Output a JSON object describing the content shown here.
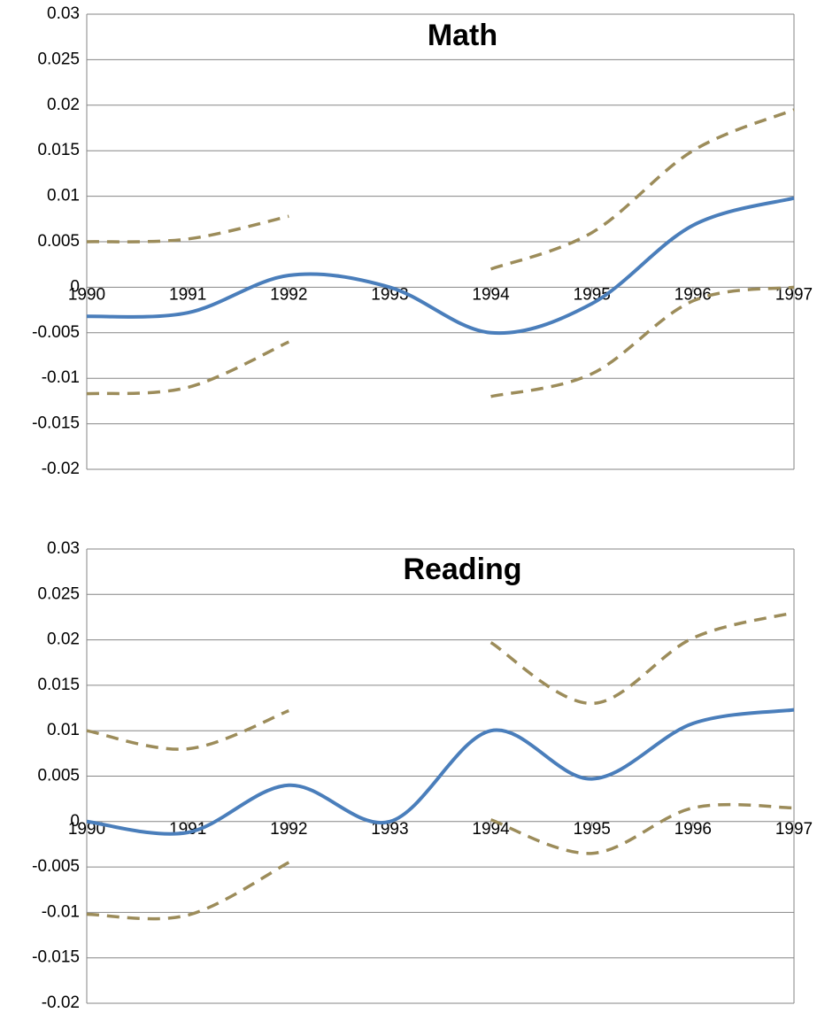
{
  "chart_data": [
    {
      "type": "line",
      "title": "Math",
      "x": [
        1990,
        1991,
        1992,
        1993,
        1994,
        1995,
        1996,
        1997
      ],
      "xlim": [
        1990,
        1997
      ],
      "ylim": [
        -0.02,
        0.03
      ],
      "yticks": [
        -0.02,
        -0.015,
        -0.01,
        -0.005,
        0,
        0.005,
        0.01,
        0.015,
        0.02,
        0.025,
        0.03
      ],
      "grid": true,
      "smooth": true,
      "series": [
        {
          "color": "#4a7ebb",
          "dashed": false,
          "values": [
            -0.0032,
            -0.0028,
            0.0013,
            0.0,
            -0.005,
            -0.0018,
            0.0068,
            0.0098
          ]
        },
        {
          "color": "#9c8c5a",
          "dashed": true,
          "values": [
            0.005,
            0.0053,
            0.0078,
            null,
            0.002,
            0.006,
            0.015,
            0.0195
          ]
        },
        {
          "color": "#9c8c5a",
          "dashed": true,
          "values": [
            -0.0117,
            -0.011,
            -0.006,
            null,
            -0.012,
            -0.0095,
            -0.0015,
            0.0
          ]
        }
      ]
    },
    {
      "type": "line",
      "title": "Reading",
      "x": [
        1990,
        1991,
        1992,
        1993,
        1994,
        1995,
        1996,
        1997
      ],
      "xlim": [
        1990,
        1997
      ],
      "ylim": [
        -0.02,
        0.03
      ],
      "yticks": [
        -0.02,
        -0.015,
        -0.01,
        -0.005,
        0,
        0.005,
        0.01,
        0.015,
        0.02,
        0.025,
        0.03
      ],
      "grid": true,
      "smooth": true,
      "series": [
        {
          "color": "#4a7ebb",
          "dashed": false,
          "values": [
            0.0,
            -0.0012,
            0.004,
            0.0,
            0.01,
            0.0047,
            0.0108,
            0.0123
          ]
        },
        {
          "color": "#9c8c5a",
          "dashed": true,
          "values": [
            0.01,
            0.008,
            0.0122,
            null,
            0.0197,
            0.013,
            0.0202,
            0.023
          ]
        },
        {
          "color": "#9c8c5a",
          "dashed": true,
          "values": [
            -0.0102,
            -0.0103,
            -0.0045,
            null,
            0.0002,
            -0.0035,
            0.0015,
            0.0015
          ]
        }
      ]
    }
  ]
}
